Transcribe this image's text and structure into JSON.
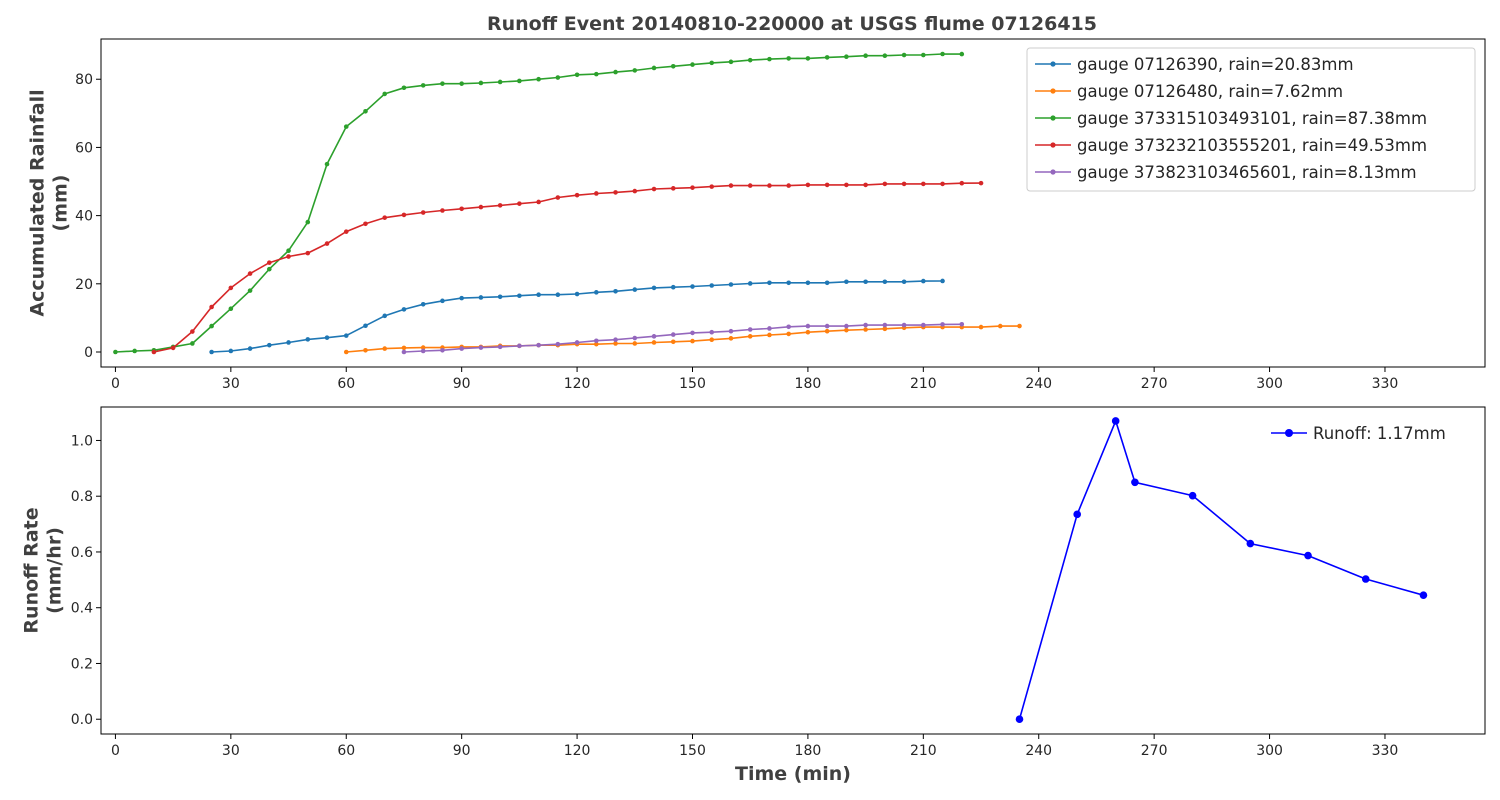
{
  "title": "Runoff Event 20140810-220000 at USGS flume 07126415",
  "chart_data": [
    {
      "type": "line",
      "ylabel_lines": [
        "Accumulated Rainfall",
        "(mm)"
      ],
      "xlim": [
        -3.75,
        356
      ],
      "ylim": [
        -4.4,
        91.8
      ],
      "xticks": [
        0,
        30,
        60,
        90,
        120,
        150,
        180,
        210,
        240,
        270,
        300,
        330
      ],
      "yticks": [
        0,
        20,
        40,
        60,
        80
      ],
      "legend_position": "top-right",
      "series": [
        {
          "name": "gauge 07126390, rain=20.83mm",
          "color": "#1f77b4",
          "x": [
            25,
            30,
            35,
            40,
            45,
            50,
            55,
            60,
            65,
            70,
            75,
            80,
            85,
            90,
            95,
            100,
            105,
            110,
            115,
            120,
            125,
            130,
            135,
            140,
            145,
            150,
            155,
            160,
            165,
            170,
            175,
            180,
            185,
            190,
            195,
            200,
            205,
            210,
            215
          ],
          "y": [
            0,
            0.3,
            1.0,
            2.0,
            2.8,
            3.7,
            4.2,
            4.8,
            7.7,
            10.6,
            12.5,
            14.0,
            15.0,
            15.8,
            16.0,
            16.2,
            16.5,
            16.8,
            16.8,
            17.0,
            17.5,
            17.8,
            18.3,
            18.8,
            19.0,
            19.2,
            19.5,
            19.8,
            20.1,
            20.3,
            20.3,
            20.3,
            20.3,
            20.6,
            20.6,
            20.6,
            20.6,
            20.8,
            20.83
          ]
        },
        {
          "name": "gauge 07126480, rain=7.62mm",
          "color": "#ff7f0e",
          "x": [
            60,
            65,
            70,
            75,
            80,
            85,
            90,
            95,
            100,
            105,
            110,
            115,
            120,
            125,
            130,
            135,
            140,
            145,
            150,
            155,
            160,
            165,
            170,
            175,
            180,
            185,
            190,
            195,
            200,
            205,
            210,
            215,
            220,
            225,
            230,
            235
          ],
          "y": [
            0,
            0.5,
            1.0,
            1.2,
            1.3,
            1.3,
            1.5,
            1.5,
            1.8,
            1.8,
            2.0,
            2.0,
            2.3,
            2.3,
            2.5,
            2.5,
            2.8,
            3.0,
            3.2,
            3.6,
            4.0,
            4.6,
            5.0,
            5.3,
            5.8,
            6.1,
            6.4,
            6.6,
            6.8,
            7.1,
            7.3,
            7.3,
            7.3,
            7.3,
            7.6,
            7.62
          ]
        },
        {
          "name": "gauge 373315103493101, rain=87.38mm",
          "color": "#2ca02c",
          "x": [
            0,
            5,
            10,
            15,
            20,
            25,
            30,
            35,
            40,
            45,
            50,
            55,
            60,
            65,
            70,
            75,
            80,
            85,
            90,
            95,
            100,
            105,
            110,
            115,
            120,
            125,
            130,
            135,
            140,
            145,
            150,
            155,
            160,
            165,
            170,
            175,
            180,
            185,
            190,
            195,
            200,
            205,
            210,
            215,
            220
          ],
          "y": [
            0,
            0.3,
            0.5,
            1.5,
            2.5,
            7.6,
            12.7,
            18.0,
            24.3,
            29.7,
            38.1,
            55.1,
            66.1,
            70.6,
            75.7,
            77.5,
            78.2,
            78.7,
            78.7,
            78.9,
            79.2,
            79.5,
            80.0,
            80.5,
            81.3,
            81.5,
            82.1,
            82.6,
            83.3,
            83.8,
            84.3,
            84.8,
            85.1,
            85.6,
            85.9,
            86.1,
            86.1,
            86.4,
            86.6,
            86.9,
            86.9,
            87.1,
            87.1,
            87.4,
            87.38
          ]
        },
        {
          "name": "gauge 373232103555201, rain=49.53mm",
          "color": "#d62728",
          "x": [
            10,
            15,
            20,
            25,
            30,
            35,
            40,
            45,
            50,
            55,
            60,
            65,
            70,
            75,
            80,
            85,
            90,
            95,
            100,
            105,
            110,
            115,
            120,
            125,
            130,
            135,
            140,
            145,
            150,
            155,
            160,
            165,
            170,
            175,
            180,
            185,
            190,
            195,
            200,
            205,
            210,
            215,
            220,
            225
          ],
          "y": [
            0,
            1.2,
            6.0,
            13.2,
            18.8,
            23.0,
            26.2,
            28.0,
            29.0,
            31.8,
            35.3,
            37.6,
            39.4,
            40.2,
            40.9,
            41.5,
            42.0,
            42.5,
            43.0,
            43.5,
            44.0,
            45.3,
            46.0,
            46.5,
            46.8,
            47.2,
            47.8,
            48.0,
            48.2,
            48.5,
            48.8,
            48.8,
            48.8,
            48.8,
            49.0,
            49.0,
            49.0,
            49.0,
            49.3,
            49.3,
            49.3,
            49.3,
            49.5,
            49.53
          ]
        },
        {
          "name": "gauge 373823103465601, rain=8.13mm",
          "color": "#9467bd",
          "x": [
            75,
            80,
            85,
            90,
            95,
            100,
            105,
            110,
            115,
            120,
            125,
            130,
            135,
            140,
            145,
            150,
            155,
            160,
            165,
            170,
            175,
            180,
            185,
            190,
            195,
            200,
            205,
            210,
            215,
            220
          ],
          "y": [
            0,
            0.3,
            0.5,
            1.0,
            1.3,
            1.5,
            1.8,
            2.0,
            2.3,
            2.8,
            3.3,
            3.6,
            4.1,
            4.6,
            5.1,
            5.6,
            5.8,
            6.1,
            6.6,
            6.9,
            7.4,
            7.6,
            7.6,
            7.6,
            7.9,
            7.9,
            7.9,
            7.9,
            8.1,
            8.13
          ]
        }
      ]
    },
    {
      "type": "line",
      "xlabel": "Time (min)",
      "ylabel_lines": [
        "Runoff Rate",
        "(mm/hr)"
      ],
      "xlim": [
        -3.75,
        356
      ],
      "ylim": [
        -0.053,
        1.12
      ],
      "xticks": [
        0,
        30,
        60,
        90,
        120,
        150,
        180,
        210,
        240,
        270,
        300,
        330
      ],
      "yticks": [
        0.0,
        0.2,
        0.4,
        0.6,
        0.8,
        1.0
      ],
      "legend_position": "top-right",
      "series": [
        {
          "name": "Runoff: 1.17mm",
          "color": "#0000ff",
          "x": [
            235,
            250,
            260,
            265,
            280,
            295,
            310,
            325,
            340
          ],
          "y": [
            0,
            0.735,
            1.07,
            0.85,
            0.802,
            0.63,
            0.587,
            0.503,
            0.445
          ]
        }
      ]
    }
  ]
}
